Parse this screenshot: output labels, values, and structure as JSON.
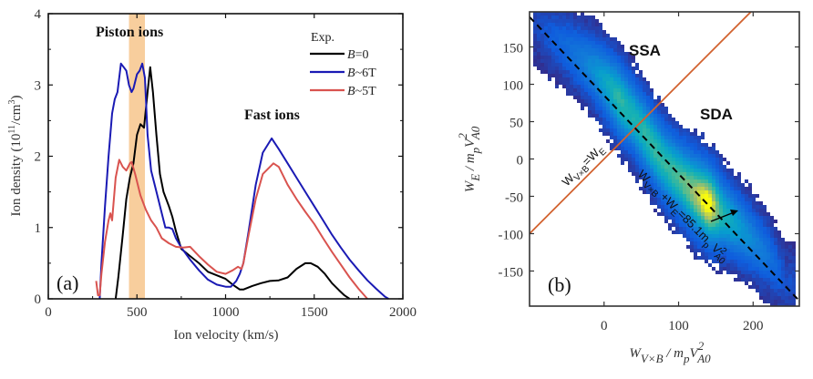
{
  "chart_data": [
    {
      "type": "line",
      "panel_label": "(a)",
      "title": "",
      "xlabel": "Ion velocity (km/s)",
      "ylabel": "Ion density (10¹¹/cm³)",
      "ylabel_parts": {
        "pre": "Ion density (10",
        "sup1": "11",
        "mid": "/cm",
        "sup2": "3",
        "post": ")"
      },
      "xlim": [
        0,
        2000
      ],
      "ylim": [
        0,
        4
      ],
      "xticks": [
        0,
        500,
        1000,
        1500,
        2000
      ],
      "yticks": [
        0,
        1,
        2,
        3,
        4
      ],
      "grid": false,
      "legend": {
        "title": "Exp.",
        "placement": "top-right",
        "entries": [
          {
            "label_var": "B",
            "label_rest": "=0",
            "color": "#000000"
          },
          {
            "label_var": "B",
            "label_rest": "~6T",
            "color": "#1a1ab4"
          },
          {
            "label_var": "B",
            "label_rest": "~5T",
            "color": "#d9534f"
          }
        ]
      },
      "annotations": {
        "piston": "Piston ions",
        "fast": "Fast ions"
      },
      "highlight_band": {
        "x_range": [
          455,
          545
        ],
        "color": "#f7c68c"
      },
      "series": [
        {
          "name": "B=0",
          "color": "#000000",
          "x": [
            380,
            395,
            420,
            440,
            460,
            480,
            500,
            520,
            540,
            560,
            575,
            590,
            610,
            630,
            650,
            680,
            700,
            720,
            750,
            800,
            850,
            900,
            950,
            1000,
            1040,
            1080,
            1100,
            1150,
            1200,
            1250,
            1300,
            1350,
            1400,
            1450,
            1480,
            1520,
            1560,
            1600,
            1640,
            1670,
            1700
          ],
          "y": [
            0,
            0.3,
            0.9,
            1.4,
            1.7,
            1.9,
            2.3,
            2.45,
            2.4,
            2.9,
            3.25,
            2.9,
            2.3,
            1.75,
            1.5,
            1.3,
            1.15,
            0.95,
            0.7,
            0.6,
            0.5,
            0.38,
            0.33,
            0.28,
            0.2,
            0.13,
            0.13,
            0.18,
            0.22,
            0.25,
            0.26,
            0.3,
            0.42,
            0.5,
            0.5,
            0.45,
            0.35,
            0.22,
            0.12,
            0.05,
            0
          ]
        },
        {
          "name": "B~6T",
          "color": "#1a1ab4",
          "x": [
            290,
            300,
            320,
            340,
            360,
            375,
            390,
            410,
            425,
            440,
            455,
            470,
            480,
            500,
            515,
            530,
            545,
            560,
            580,
            600,
            620,
            640,
            660,
            680,
            700,
            720,
            750,
            800,
            850,
            900,
            950,
            1000,
            1030,
            1060,
            1080,
            1100,
            1130,
            1170,
            1210,
            1260,
            1300,
            1350,
            1400,
            1450,
            1500,
            1550,
            1600,
            1650,
            1700,
            1750,
            1800,
            1850,
            1900,
            1920
          ],
          "y": [
            0,
            0.5,
            1.3,
            2.0,
            2.6,
            2.8,
            2.9,
            3.3,
            3.25,
            3.2,
            3.0,
            2.9,
            2.95,
            3.15,
            3.2,
            3.3,
            3.1,
            2.3,
            1.8,
            1.6,
            1.4,
            1.2,
            1.0,
            1.0,
            0.98,
            0.85,
            0.72,
            0.55,
            0.4,
            0.27,
            0.2,
            0.17,
            0.17,
            0.25,
            0.35,
            0.5,
            0.95,
            1.6,
            2.05,
            2.25,
            2.1,
            1.9,
            1.7,
            1.5,
            1.3,
            1.1,
            0.9,
            0.72,
            0.55,
            0.4,
            0.26,
            0.14,
            0.03,
            0
          ]
        },
        {
          "name": "B~5T",
          "color": "#d9534f",
          "x": [
            270,
            280,
            290,
            300,
            320,
            340,
            350,
            360,
            380,
            400,
            420,
            440,
            460,
            470,
            490,
            520,
            550,
            580,
            610,
            640,
            680,
            720,
            760,
            800,
            850,
            900,
            950,
            1000,
            1040,
            1070,
            1090,
            1100,
            1130,
            1170,
            1210,
            1270,
            1300,
            1350,
            1400,
            1450,
            1500,
            1550,
            1600,
            1650,
            1700,
            1750,
            1800
          ],
          "y": [
            0.25,
            0.05,
            0.05,
            0.35,
            0.8,
            1.1,
            1.2,
            1.1,
            1.7,
            1.95,
            1.85,
            1.8,
            1.9,
            1.92,
            1.75,
            1.45,
            1.25,
            1.1,
            1.0,
            0.85,
            0.78,
            0.73,
            0.72,
            0.73,
            0.6,
            0.48,
            0.38,
            0.35,
            0.4,
            0.45,
            0.42,
            0.5,
            0.9,
            1.4,
            1.75,
            1.9,
            1.85,
            1.6,
            1.4,
            1.22,
            1.05,
            0.85,
            0.66,
            0.48,
            0.3,
            0.14,
            0
          ]
        }
      ]
    },
    {
      "type": "heatmap",
      "panel_label": "(b)",
      "title": "",
      "xlabel_parts": {
        "main": "W",
        "sub": "V×B",
        "div": " / m",
        "sub2": "p",
        "v": "V",
        "sup": "2",
        "sub3": "A0"
      },
      "ylabel_parts": {
        "main": "W",
        "sub": "E",
        "div": " / m",
        "sub2": "p",
        "v": "V",
        "sup": "2",
        "sub3": "A0"
      },
      "xlim": [
        -100,
        262
      ],
      "ylim": [
        -197,
        197
      ],
      "xticks": [
        0,
        100,
        200
      ],
      "yticks": [
        -150,
        -100,
        -50,
        0,
        50,
        100,
        150
      ],
      "colormap": "parula",
      "grid": false,
      "regions": {
        "upper": "SSA",
        "lower": "SDA"
      },
      "lines": [
        {
          "name": "W_VxB = W_E",
          "slope": 1,
          "intercept": 0,
          "color": "#d2622f",
          "style": "solid",
          "label": "W_{V×B}=W_E"
        },
        {
          "name": "fit",
          "slope": -1.05,
          "intercept": 85.1,
          "color": "#000000",
          "style": "dashed",
          "label": "W_{V×B}+W_E=85.1m_pV²_{A0}"
        }
      ],
      "density_ridge": [
        {
          "x": -95,
          "y": 180,
          "w": 0.05
        },
        {
          "x": -50,
          "y": 150,
          "w": 0.2
        },
        {
          "x": -20,
          "y": 125,
          "w": 0.35
        },
        {
          "x": 0,
          "y": 105,
          "w": 0.5
        },
        {
          "x": 20,
          "y": 80,
          "w": 0.65
        },
        {
          "x": 40,
          "y": 55,
          "w": 0.6
        },
        {
          "x": 60,
          "y": 25,
          "w": 0.65
        },
        {
          "x": 80,
          "y": -5,
          "w": 0.65
        },
        {
          "x": 100,
          "y": -25,
          "w": 0.7
        },
        {
          "x": 120,
          "y": -45,
          "w": 0.8
        },
        {
          "x": 140,
          "y": -60,
          "w": 1.0
        },
        {
          "x": 160,
          "y": -75,
          "w": 0.6
        },
        {
          "x": 190,
          "y": -100,
          "w": 0.4
        },
        {
          "x": 220,
          "y": -130,
          "w": 0.25
        },
        {
          "x": 245,
          "y": -165,
          "w": 0.08
        }
      ]
    }
  ]
}
